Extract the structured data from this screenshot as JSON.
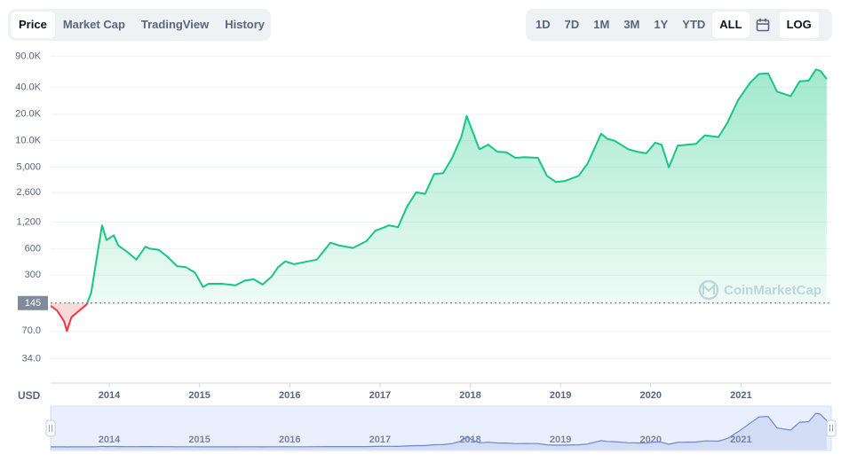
{
  "tabs": [
    "Price",
    "Market Cap",
    "TradingView",
    "History"
  ],
  "ranges": [
    "1D",
    "7D",
    "1M",
    "3M",
    "1Y",
    "YTD",
    "ALL"
  ],
  "log_button": "LOG",
  "currency": "USD",
  "watermark": "CoinMarketCap",
  "chart_data": {
    "type": "line",
    "log": true,
    "grid": true,
    "baseline": 145,
    "color_above": "#16c784",
    "color_below": "#ea3943",
    "navigator_color": "#6f86d6",
    "x": [
      2013.35,
      2013.42,
      2013.5,
      2013.53,
      2013.58,
      2013.67,
      2013.75,
      2013.8,
      2013.85,
      2013.92,
      2013.97,
      2014.05,
      2014.1,
      2014.2,
      2014.3,
      2014.4,
      2014.45,
      2014.55,
      2014.65,
      2014.75,
      2014.85,
      2014.95,
      2015.04,
      2015.1,
      2015.25,
      2015.4,
      2015.5,
      2015.6,
      2015.7,
      2015.8,
      2015.87,
      2015.95,
      2016.05,
      2016.15,
      2016.3,
      2016.45,
      2016.55,
      2016.7,
      2016.85,
      2016.95,
      2017.0,
      2017.1,
      2017.2,
      2017.3,
      2017.4,
      2017.5,
      2017.6,
      2017.7,
      2017.8,
      2017.9,
      2017.96,
      2018.05,
      2018.1,
      2018.2,
      2018.3,
      2018.4,
      2018.5,
      2018.6,
      2018.75,
      2018.85,
      2018.95,
      2019.05,
      2019.2,
      2019.3,
      2019.45,
      2019.52,
      2019.6,
      2019.75,
      2019.85,
      2019.95,
      2020.05,
      2020.12,
      2020.2,
      2020.3,
      2020.5,
      2020.6,
      2020.75,
      2020.85,
      2020.97,
      2021.1,
      2021.2,
      2021.3,
      2021.4,
      2021.55,
      2021.65,
      2021.75,
      2021.83,
      2021.88,
      2021.95
    ],
    "series": [
      {
        "values": [
          135,
          120,
          90,
          70,
          100,
          120,
          140,
          190,
          400,
          1100,
          750,
          850,
          650,
          550,
          450,
          630,
          600,
          580,
          480,
          380,
          370,
          320,
          220,
          240,
          240,
          230,
          260,
          270,
          235,
          290,
          370,
          430,
          400,
          420,
          450,
          700,
          650,
          610,
          730,
          960,
          1000,
          1100,
          1050,
          1800,
          2600,
          2500,
          4200,
          4300,
          6400,
          11000,
          19000,
          11000,
          8000,
          9000,
          7500,
          7400,
          6400,
          6500,
          6400,
          4000,
          3400,
          3500,
          4000,
          5500,
          12000,
          10500,
          10000,
          8000,
          7500,
          7200,
          9500,
          9000,
          5000,
          8800,
          9200,
          11500,
          11000,
          16000,
          29000,
          45000,
          57000,
          58000,
          36000,
          32000,
          47000,
          48000,
          64000,
          62000,
          50000
        ]
      }
    ],
    "xlim": [
      2013.35,
      2022.0
    ],
    "xticks": [
      2014,
      2015,
      2016,
      2017,
      2018,
      2019,
      2020,
      2021
    ],
    "ylim": [
      18,
      105000
    ],
    "yticks": [
      {
        "value": 34,
        "label": "34.0"
      },
      {
        "value": 70,
        "label": "70.0"
      },
      300,
      600,
      {
        "value": 1200,
        "label": "1,200"
      },
      {
        "value": 2600,
        "label": "2,600"
      },
      {
        "value": 5000,
        "label": "5,000"
      },
      {
        "value": 10000,
        "label": "10.0K"
      },
      {
        "value": 20000,
        "label": "20.0K"
      },
      {
        "value": 40000,
        "label": "40.0K"
      },
      {
        "value": 90000,
        "label": "90.0K"
      }
    ]
  }
}
